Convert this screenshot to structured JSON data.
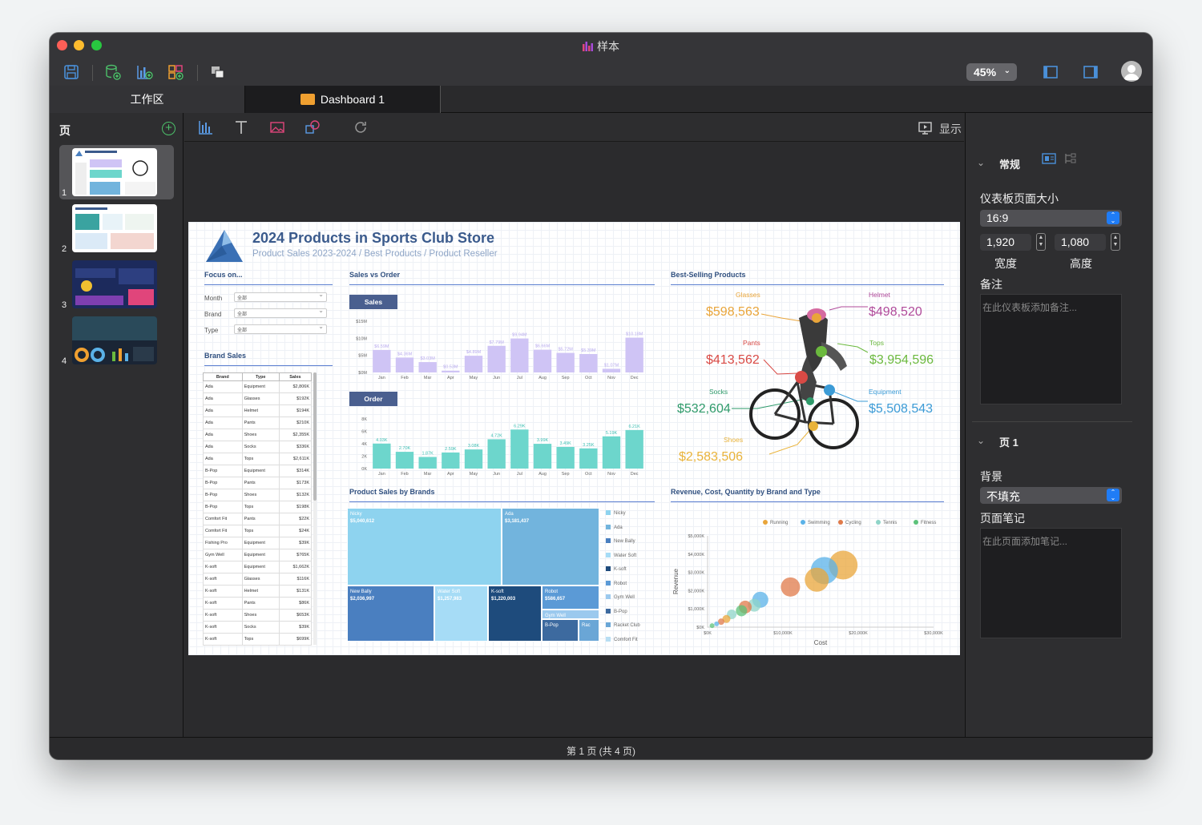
{
  "window": {
    "title": "样本"
  },
  "toolbar": {
    "zoom": "45%"
  },
  "tabs": {
    "workspace": "工作区",
    "dashboard": "Dashboard 1"
  },
  "pages_panel": {
    "title": "页",
    "thumbnails": [
      {
        "num": "1"
      },
      {
        "num": "2"
      },
      {
        "num": "3"
      },
      {
        "num": "4"
      }
    ]
  },
  "canvas_toolbar": {
    "show_label": "显示"
  },
  "inspector": {
    "general": "常规",
    "page_size_label": "仪表板页面大小",
    "page_size_value": "16:9",
    "width_value": "1,920",
    "height_value": "1,080",
    "width_label": "宽度",
    "height_label": "高度",
    "notes_label": "备注",
    "notes_placeholder": "在此仪表板添加备注...",
    "page_section": "页 1",
    "background_label": "背景",
    "background_value": "不填充",
    "page_notes_label": "页面笔记",
    "page_notes_placeholder": "在此页面添加笔记..."
  },
  "status": {
    "text": "第 1 页 (共 4 页)"
  },
  "dashboard": {
    "title": "2024 Products in Sports Club Store",
    "subtitle": "Product Sales 2023-2024 / Best Products / Product Reseller",
    "focus": {
      "title": "Focus on...",
      "filters": [
        {
          "label": "Month",
          "value": "全部"
        },
        {
          "label": "Brand",
          "value": "全部"
        },
        {
          "label": "Type",
          "value": "全部"
        }
      ]
    },
    "brand_sales": {
      "title": "Brand Sales",
      "headers": [
        "Brand",
        "Type",
        "Sales"
      ],
      "rows": [
        [
          "Ada",
          "Equipment",
          "$2,806K"
        ],
        [
          "Ada",
          "Glasses",
          "$192K"
        ],
        [
          "Ada",
          "Helmet",
          "$194K"
        ],
        [
          "Ada",
          "Pants",
          "$210K"
        ],
        [
          "Ada",
          "Shoes",
          "$2,355K"
        ],
        [
          "Ada",
          "Socks",
          "$336K"
        ],
        [
          "Ada",
          "Tops",
          "$2,611K"
        ],
        [
          "B-Pop",
          "Equipment",
          "$314K"
        ],
        [
          "B-Pop",
          "Pants",
          "$173K"
        ],
        [
          "B-Pop",
          "Shoes",
          "$132K"
        ],
        [
          "B-Pop",
          "Tops",
          "$198K"
        ],
        [
          "Comfort Fit",
          "Pants",
          "$22K"
        ],
        [
          "Comfort Fit",
          "Tops",
          "$24K"
        ],
        [
          "Fishing Pro",
          "Equipment",
          "$39K"
        ],
        [
          "Gym Well",
          "Equipment",
          "$765K"
        ],
        [
          "K-soft",
          "Equipment",
          "$1,662K"
        ],
        [
          "K-soft",
          "Glasses",
          "$116K"
        ],
        [
          "K-soft",
          "Helmet",
          "$131K"
        ],
        [
          "K-soft",
          "Pants",
          "$86K"
        ],
        [
          "K-soft",
          "Shoes",
          "$653K"
        ],
        [
          "K-soft",
          "Socks",
          "$39K"
        ],
        [
          "K-soft",
          "Tops",
          "$699K"
        ]
      ]
    },
    "sales_vs_order": {
      "title": "Sales vs Order",
      "sales_chip": "Sales",
      "order_chip": "Order"
    },
    "best_selling": {
      "title": "Best-Selling Products",
      "items": [
        {
          "name": "Glasses",
          "value": "$598,563",
          "color": "#e9a53a"
        },
        {
          "name": "Helmet",
          "value": "$498,520",
          "color": "#b04a9a"
        },
        {
          "name": "Pants",
          "value": "$413,562",
          "color": "#d94a45"
        },
        {
          "name": "Tops",
          "value": "$3,954,596",
          "color": "#6bb93e"
        },
        {
          "name": "Socks",
          "value": "$532,604",
          "color": "#2e9a6a"
        },
        {
          "name": "Equipment",
          "value": "$5,508,543",
          "color": "#3b9bd6"
        },
        {
          "name": "Shoes",
          "value": "$2,583,506",
          "color": "#e9b33a"
        }
      ]
    },
    "product_sales": {
      "title": "Product Sales by Brands"
    },
    "revenue": {
      "title": "Revenue, Cost, Quantity by Brand and Type"
    }
  },
  "chart_data": [
    {
      "type": "bar",
      "title": "Sales",
      "categories": [
        "Jan",
        "Feb",
        "Mar",
        "Apr",
        "May",
        "Jun",
        "Jul",
        "Aug",
        "Sep",
        "Oct",
        "Nov",
        "Dec"
      ],
      "values": [
        6.59,
        4.36,
        3.03,
        0.53,
        4.89,
        7.79,
        9.94,
        6.66,
        5.72,
        5.39,
        1.07,
        10.18
      ],
      "labels": [
        "$6.59M",
        "$4.36M",
        "$3.03M",
        "$0.53M",
        "$4.89M",
        "$7.79M",
        "$9.94M",
        "$6.66M",
        "$5.72M",
        "$5.39M",
        "$1.07M",
        "$10.18M"
      ],
      "ylim": [
        0,
        15
      ],
      "yticks": [
        "$15M",
        "$10M",
        "$5M",
        "$0M"
      ],
      "color": "#cfc4f5"
    },
    {
      "type": "bar",
      "title": "Order",
      "categories": [
        "Jan",
        "Feb",
        "Mar",
        "Apr",
        "May",
        "Jun",
        "Jul",
        "Aug",
        "Sep",
        "Oct",
        "Nov",
        "Dec"
      ],
      "values": [
        4.03,
        2.7,
        1.87,
        2.59,
        3.08,
        4.72,
        6.29,
        3.99,
        3.49,
        3.25,
        5.19,
        6.21
      ],
      "labels": [
        "4.03K",
        "2.70K",
        "1.87K",
        "2.59K",
        "3.08K",
        "4.72K",
        "6.29K",
        "3.99K",
        "3.49K",
        "3.25K",
        "5.19K",
        "6.21K"
      ],
      "ylim": [
        0,
        8
      ],
      "yticks": [
        "8K",
        "6K",
        "4K",
        "2K",
        "0K"
      ],
      "color": "#6dd6cc"
    },
    {
      "type": "treemap",
      "title": "Product Sales by Brands",
      "cells": [
        {
          "name": "Nicky",
          "value": "$5,040,612",
          "color": "#8ed3ef"
        },
        {
          "name": "Ada",
          "value": "$3,181,437",
          "color": "#72b4dd"
        },
        {
          "name": "New Bally",
          "value": "$2,036,997",
          "color": "#4a7fc0"
        },
        {
          "name": "Water Soft",
          "value": "$1,257,983",
          "color": "#a6dcf6"
        },
        {
          "name": "K-soft",
          "value": "$1,220,003",
          "color": "#1e4b7c"
        },
        {
          "name": "Robot",
          "value": "$586,657",
          "color": "#5b9ad6"
        },
        {
          "name": "Gym Well",
          "value": "",
          "color": "#9bc9ee"
        },
        {
          "name": "B-Pop",
          "value": "",
          "color": "#3d6a9f"
        },
        {
          "name": "Rac",
          "value": "",
          "color": "#6aa6d6"
        }
      ],
      "legend": [
        {
          "name": "Nicky",
          "color": "#8ed3ef"
        },
        {
          "name": "Ada",
          "color": "#72b4dd"
        },
        {
          "name": "New Bally",
          "color": "#4a7fc0"
        },
        {
          "name": "Water Soft",
          "color": "#a6dcf6"
        },
        {
          "name": "K-soft",
          "color": "#1e4b7c"
        },
        {
          "name": "Robot",
          "color": "#5b9ad6"
        },
        {
          "name": "Gym Well",
          "color": "#9bc9ee"
        },
        {
          "name": "B-Pop",
          "color": "#3d6a9f"
        },
        {
          "name": "Racket Club",
          "color": "#6aa6d6"
        },
        {
          "name": "Comfort Fit",
          "color": "#b8def3"
        }
      ]
    },
    {
      "type": "scatter",
      "title": "Revenue, Cost, Quantity by Brand and Type",
      "xlabel": "Cost",
      "ylabel": "Revenue",
      "xticks": [
        "$0K",
        "$10,000K",
        "$20,000K",
        "$30,000K"
      ],
      "yticks": [
        "$5,000K",
        "$4,000K",
        "$3,000K",
        "$2,000K",
        "$1,000K",
        "$0K"
      ],
      "xlim": [
        0,
        30000
      ],
      "ylim": [
        0,
        5000
      ],
      "legend": [
        {
          "name": "Running",
          "color": "#e9a53a"
        },
        {
          "name": "Swimming",
          "color": "#5ab2e8"
        },
        {
          "name": "Cycling",
          "color": "#e07a4a"
        },
        {
          "name": "Tennis",
          "color": "#8fd4c8"
        },
        {
          "name": "Fitness",
          "color": "#5cc27a"
        }
      ],
      "points": [
        {
          "x": 18000,
          "y": 3400,
          "r": 18,
          "c": "#e9a53a"
        },
        {
          "x": 15500,
          "y": 3100,
          "r": 17,
          "c": "#5ab2e8"
        },
        {
          "x": 14500,
          "y": 2600,
          "r": 15,
          "c": "#e9a53a"
        },
        {
          "x": 11000,
          "y": 2200,
          "r": 12,
          "c": "#e07a4a"
        },
        {
          "x": 7000,
          "y": 1500,
          "r": 10,
          "c": "#5ab2e8"
        },
        {
          "x": 6200,
          "y": 1200,
          "r": 8,
          "c": "#8fd4c8"
        },
        {
          "x": 5000,
          "y": 1100,
          "r": 8,
          "c": "#e07a4a"
        },
        {
          "x": 4500,
          "y": 900,
          "r": 7,
          "c": "#5cc27a"
        },
        {
          "x": 3200,
          "y": 700,
          "r": 6,
          "c": "#8fd4c8"
        },
        {
          "x": 2500,
          "y": 450,
          "r": 5,
          "c": "#e9a53a"
        },
        {
          "x": 1800,
          "y": 300,
          "r": 4,
          "c": "#e07a4a"
        },
        {
          "x": 1200,
          "y": 180,
          "r": 3,
          "c": "#5ab2e8"
        },
        {
          "x": 600,
          "y": 80,
          "r": 3,
          "c": "#5cc27a"
        }
      ]
    }
  ]
}
